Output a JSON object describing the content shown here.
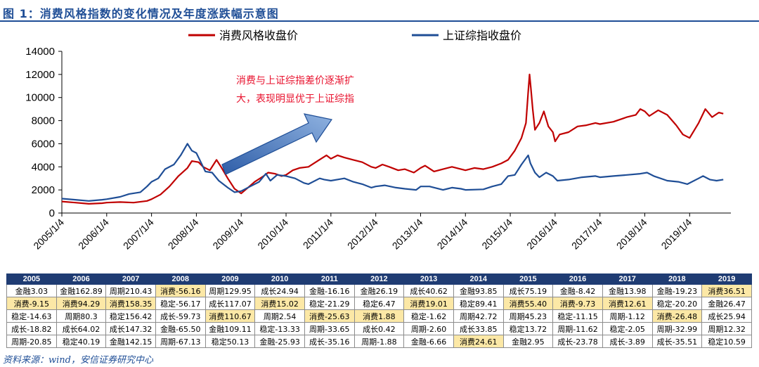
{
  "figure": {
    "title": "图 1：消费风格指数的变化情况及年度涨跌幅示意图",
    "source": "资料来源：wind，安信证券研究中心"
  },
  "chart_data": {
    "type": "line",
    "legend": {
      "position": "top"
    },
    "ylim": [
      0,
      14000
    ],
    "yticks": [
      0,
      2000,
      4000,
      6000,
      8000,
      10000,
      12000,
      14000
    ],
    "x_tick_labels": [
      "2005/1/4",
      "2006/1/4",
      "2007/1/4",
      "2008/1/4",
      "2009/1/4",
      "2010/1/4",
      "2011/1/4",
      "2012/1/4",
      "2013/1/4",
      "2014/1/4",
      "2015/1/4",
      "2016/1/4",
      "2017/1/4",
      "2018/1/4",
      "2019/1/4"
    ],
    "annotation": {
      "lines": [
        "消费与上证综指差价逐渐扩",
        "大，表现明显优于上证综指"
      ],
      "color": "#e8112d"
    },
    "series": [
      {
        "name": "消费风格收盘价",
        "color": "#c00000",
        "points": [
          [
            2005.0,
            1000
          ],
          [
            2005.3,
            900
          ],
          [
            2005.6,
            800
          ],
          [
            2005.9,
            850
          ],
          [
            2006.0,
            900
          ],
          [
            2006.3,
            950
          ],
          [
            2006.6,
            900
          ],
          [
            2006.9,
            1050
          ],
          [
            2007.0,
            1200
          ],
          [
            2007.2,
            1600
          ],
          [
            2007.4,
            2300
          ],
          [
            2007.6,
            3200
          ],
          [
            2007.8,
            3900
          ],
          [
            2007.9,
            4500
          ],
          [
            2008.05,
            4400
          ],
          [
            2008.15,
            4000
          ],
          [
            2008.3,
            3700
          ],
          [
            2008.45,
            4600
          ],
          [
            2008.55,
            4000
          ],
          [
            2008.7,
            3000
          ],
          [
            2008.85,
            2100
          ],
          [
            2009.0,
            1700
          ],
          [
            2009.15,
            2200
          ],
          [
            2009.3,
            2700
          ],
          [
            2009.5,
            3200
          ],
          [
            2009.6,
            3500
          ],
          [
            2009.75,
            3400
          ],
          [
            2009.9,
            3200
          ],
          [
            2010.0,
            3300
          ],
          [
            2010.15,
            3700
          ],
          [
            2010.3,
            3900
          ],
          [
            2010.5,
            4000
          ],
          [
            2010.7,
            4500
          ],
          [
            2010.9,
            5000
          ],
          [
            2011.0,
            4700
          ],
          [
            2011.15,
            5000
          ],
          [
            2011.3,
            4800
          ],
          [
            2011.5,
            4600
          ],
          [
            2011.7,
            4400
          ],
          [
            2011.9,
            4000
          ],
          [
            2012.0,
            3900
          ],
          [
            2012.15,
            4200
          ],
          [
            2012.3,
            4000
          ],
          [
            2012.5,
            3700
          ],
          [
            2012.65,
            3800
          ],
          [
            2012.85,
            3500
          ],
          [
            2013.0,
            3900
          ],
          [
            2013.1,
            4100
          ],
          [
            2013.3,
            3600
          ],
          [
            2013.5,
            3800
          ],
          [
            2013.7,
            4000
          ],
          [
            2013.9,
            3800
          ],
          [
            2014.0,
            3700
          ],
          [
            2014.2,
            3900
          ],
          [
            2014.4,
            3800
          ],
          [
            2014.6,
            4000
          ],
          [
            2014.8,
            4300
          ],
          [
            2014.95,
            4600
          ],
          [
            2015.1,
            5400
          ],
          [
            2015.25,
            6500
          ],
          [
            2015.35,
            7800
          ],
          [
            2015.4,
            10500
          ],
          [
            2015.43,
            12000
          ],
          [
            2015.46,
            10800
          ],
          [
            2015.5,
            9000
          ],
          [
            2015.55,
            7200
          ],
          [
            2015.65,
            7800
          ],
          [
            2015.75,
            8800
          ],
          [
            2015.85,
            7500
          ],
          [
            2015.95,
            7000
          ],
          [
            2016.0,
            6200
          ],
          [
            2016.1,
            6800
          ],
          [
            2016.3,
            7000
          ],
          [
            2016.5,
            7500
          ],
          [
            2016.7,
            7600
          ],
          [
            2016.9,
            7800
          ],
          [
            2017.0,
            7700
          ],
          [
            2017.3,
            7900
          ],
          [
            2017.6,
            8300
          ],
          [
            2017.8,
            8500
          ],
          [
            2017.9,
            9000
          ],
          [
            2018.0,
            8800
          ],
          [
            2018.1,
            8400
          ],
          [
            2018.3,
            8900
          ],
          [
            2018.5,
            8500
          ],
          [
            2018.7,
            7600
          ],
          [
            2018.85,
            6800
          ],
          [
            2019.0,
            6500
          ],
          [
            2019.2,
            7800
          ],
          [
            2019.35,
            9000
          ],
          [
            2019.5,
            8300
          ],
          [
            2019.65,
            8700
          ],
          [
            2019.75,
            8600
          ]
        ]
      },
      {
        "name": "上证综指收盘价",
        "color": "#1f4e96",
        "points": [
          [
            2005.0,
            1250
          ],
          [
            2005.3,
            1150
          ],
          [
            2005.6,
            1050
          ],
          [
            2005.9,
            1150
          ],
          [
            2006.0,
            1200
          ],
          [
            2006.3,
            1400
          ],
          [
            2006.5,
            1650
          ],
          [
            2006.75,
            1800
          ],
          [
            2006.9,
            2300
          ],
          [
            2007.0,
            2700
          ],
          [
            2007.15,
            3000
          ],
          [
            2007.3,
            3800
          ],
          [
            2007.5,
            4200
          ],
          [
            2007.65,
            5000
          ],
          [
            2007.8,
            6000
          ],
          [
            2007.9,
            5400
          ],
          [
            2008.0,
            5200
          ],
          [
            2008.1,
            4400
          ],
          [
            2008.2,
            3600
          ],
          [
            2008.35,
            3500
          ],
          [
            2008.5,
            2800
          ],
          [
            2008.7,
            2200
          ],
          [
            2008.85,
            1800
          ],
          [
            2009.0,
            1900
          ],
          [
            2009.2,
            2300
          ],
          [
            2009.4,
            2700
          ],
          [
            2009.55,
            3400
          ],
          [
            2009.65,
            2800
          ],
          [
            2009.8,
            3300
          ],
          [
            2010.0,
            3200
          ],
          [
            2010.2,
            3000
          ],
          [
            2010.4,
            2600
          ],
          [
            2010.5,
            2500
          ],
          [
            2010.75,
            3000
          ],
          [
            2010.85,
            2900
          ],
          [
            2011.0,
            2800
          ],
          [
            2011.3,
            3000
          ],
          [
            2011.5,
            2700
          ],
          [
            2011.7,
            2500
          ],
          [
            2011.9,
            2200
          ],
          [
            2012.0,
            2300
          ],
          [
            2012.2,
            2400
          ],
          [
            2012.45,
            2200
          ],
          [
            2012.65,
            2100
          ],
          [
            2012.9,
            2000
          ],
          [
            2013.0,
            2300
          ],
          [
            2013.2,
            2300
          ],
          [
            2013.5,
            2000
          ],
          [
            2013.7,
            2200
          ],
          [
            2013.9,
            2100
          ],
          [
            2014.0,
            2000
          ],
          [
            2014.4,
            2050
          ],
          [
            2014.6,
            2300
          ],
          [
            2014.8,
            2500
          ],
          [
            2014.95,
            3200
          ],
          [
            2015.1,
            3300
          ],
          [
            2015.25,
            4200
          ],
          [
            2015.4,
            5000
          ],
          [
            2015.45,
            4300
          ],
          [
            2015.55,
            3500
          ],
          [
            2015.65,
            3100
          ],
          [
            2015.8,
            3500
          ],
          [
            2015.95,
            3200
          ],
          [
            2016.05,
            2800
          ],
          [
            2016.3,
            2900
          ],
          [
            2016.6,
            3100
          ],
          [
            2016.9,
            3200
          ],
          [
            2017.0,
            3100
          ],
          [
            2017.3,
            3200
          ],
          [
            2017.6,
            3300
          ],
          [
            2017.9,
            3400
          ],
          [
            2018.05,
            3500
          ],
          [
            2018.2,
            3200
          ],
          [
            2018.5,
            2800
          ],
          [
            2018.75,
            2700
          ],
          [
            2018.95,
            2500
          ],
          [
            2019.2,
            3000
          ],
          [
            2019.3,
            3200
          ],
          [
            2019.45,
            2900
          ],
          [
            2019.6,
            2800
          ],
          [
            2019.75,
            2900
          ]
        ]
      }
    ]
  },
  "table": {
    "headers": [
      "2005",
      "2006",
      "2007",
      "2008",
      "2009",
      "2010",
      "2011",
      "2012",
      "2013",
      "2014",
      "2015",
      "2016",
      "2017",
      "2018",
      "2019"
    ],
    "rows": [
      [
        "金融3.03",
        "金融162.89",
        "周期210.43",
        "消费-56.16",
        "周期129.95",
        "成长24.94",
        "金融-16.16",
        "金融26.19",
        "成长40.62",
        "金融93.85",
        "成长75.19",
        "金融-8.42",
        "金融13.98",
        "金融-19.23",
        "消费36.51"
      ],
      [
        "消费-9.15",
        "消费94.29",
        "消费158.35",
        "稳定-56.17",
        "成长117.07",
        "消费15.02",
        "稳定-21.29",
        "稳定6.47",
        "消费19.01",
        "稳定89.41",
        "消费55.40",
        "消费-9.73",
        "消费12.61",
        "稳定-20.20",
        "金融26.47"
      ],
      [
        "稳定-14.63",
        "周期80.3",
        "稳定156.42",
        "成长-59.73",
        "消费110.67",
        "周期2.54",
        "消费-25.63",
        "消费1.88",
        "稳定-1.62",
        "周期42.72",
        "周期45.23",
        "稳定-11.15",
        "周期-1.12",
        "消费-26.48",
        "成长25.94"
      ],
      [
        "成长-18.82",
        "成长64.02",
        "成长147.32",
        "金融-65.50",
        "金融109.11",
        "稳定-13.33",
        "周期-33.65",
        "成长0.42",
        "周期-2.60",
        "成长33.85",
        "稳定13.72",
        "周期-11.62",
        "稳定-2.05",
        "周期-32.99",
        "周期12.32"
      ],
      [
        "周期-20.85",
        "稳定40.19",
        "金融142.15",
        "周期-67.13",
        "稳定50.13",
        "金融-25.93",
        "成长-35.16",
        "周期-1.88",
        "金融-6.66",
        "消费24.61",
        "金融2.95",
        "成长-23.78",
        "成长-3.89",
        "成长-35.51",
        "稳定10.59"
      ]
    ],
    "highlight_keyword": "消费"
  }
}
